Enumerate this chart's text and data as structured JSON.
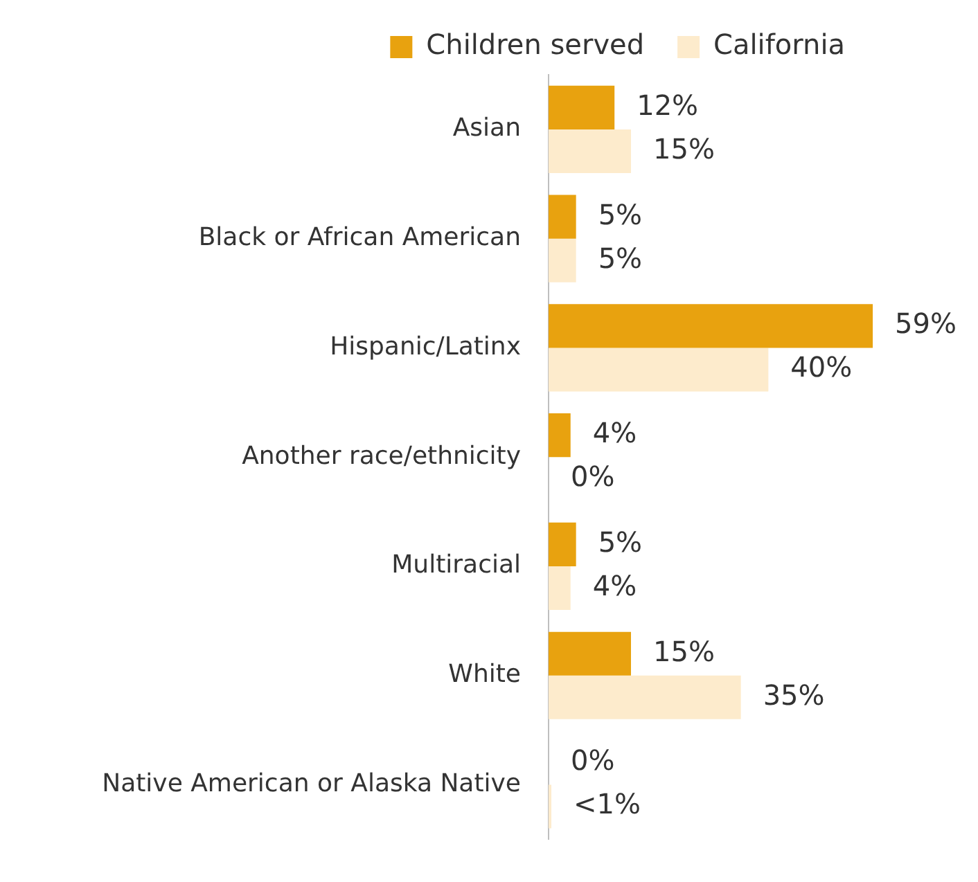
{
  "chart_data": {
    "type": "bar",
    "orientation": "horizontal",
    "categories": [
      "Asian",
      "Black or African American",
      "Hispanic/Latinx",
      "Another race/ethnicity",
      "Multiracial",
      "White",
      "Native American or Alaska Native"
    ],
    "series": [
      {
        "name": "Children served",
        "color": "#e8a20f",
        "values": [
          12,
          5,
          59,
          4,
          5,
          15,
          0
        ],
        "value_labels": [
          "12%",
          "5%",
          "59%",
          "4%",
          "5%",
          "15%",
          "0%"
        ]
      },
      {
        "name": "California",
        "color": "#fdebcc",
        "values": [
          15,
          5,
          40,
          0,
          4,
          35,
          0.5
        ],
        "value_labels": [
          "15%",
          "5%",
          "40%",
          "0%",
          "4%",
          "35%",
          "<1%"
        ]
      }
    ],
    "tick_labels": "y",
    "legend": "top"
  }
}
